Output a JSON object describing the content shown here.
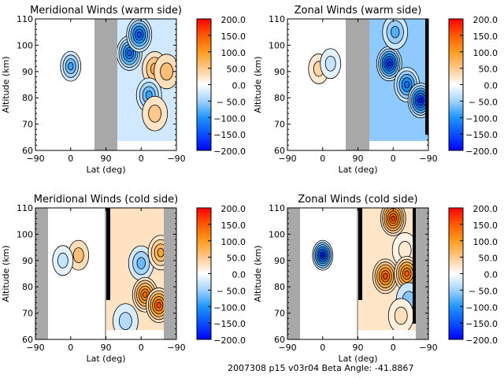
{
  "footer": "2007308 p15 v03r04 Beta Angle: -41.8867",
  "colorbar": {
    "ticks": [
      "200.0",
      "150.0",
      "100.0",
      "50.0",
      "0.0",
      "− 50.0",
      "−100.0",
      "−150.0",
      "−200.0"
    ],
    "range": [
      -200,
      200
    ],
    "stops": [
      {
        "value": 200,
        "color": "#ff0000"
      },
      {
        "value": 150,
        "color": "#ff5a00"
      },
      {
        "value": 100,
        "color": "#ff9c1e"
      },
      {
        "value": 50,
        "color": "#ffc88c"
      },
      {
        "value": 0,
        "color": "#ffffff"
      },
      {
        "value": -50,
        "color": "#a0d2ff"
      },
      {
        "value": -100,
        "color": "#1e96ff"
      },
      {
        "value": -150,
        "color": "#0a50ff"
      },
      {
        "value": -200,
        "color": "#0000ff"
      }
    ]
  },
  "chart_data": [
    {
      "type": "heatmap",
      "title": "Meridional Winds (warm side)",
      "xlabel": "Lat (deg)",
      "ylabel": "Altitude (km)",
      "xticks": [
        "−90",
        "0",
        "90",
        "0",
        "−90"
      ],
      "yticks": [
        "60",
        "70",
        "80",
        "90",
        "100",
        "110"
      ],
      "ylim": [
        60,
        110
      ],
      "clim": [
        -200,
        200
      ],
      "panel": "warm-meridional",
      "masked_lon_segment": "gray band between 90 and start of second half",
      "features": [
        {
          "x": 0,
          "y": 92,
          "value": -90
        },
        {
          "x": 150,
          "y": 97,
          "value": -140
        },
        {
          "x": 175,
          "y": 104,
          "value": -150
        },
        {
          "x": 215,
          "y": 91,
          "value": 80
        },
        {
          "x": 245,
          "y": 90,
          "value": 60
        },
        {
          "x": 200,
          "y": 81,
          "value": -90
        },
        {
          "x": 215,
          "y": 74,
          "value": 50
        }
      ]
    },
    {
      "type": "heatmap",
      "title": "Zonal Winds (warm side)",
      "xlabel": "Lat (deg)",
      "ylabel": "Altitude (km)",
      "xticks": [
        "−90",
        "0",
        "90",
        "0",
        "−90"
      ],
      "yticks": [
        "60",
        "70",
        "80",
        "90",
        "100",
        "110"
      ],
      "ylim": [
        60,
        110
      ],
      "clim": [
        -200,
        200
      ],
      "panel": "warm-zonal",
      "features": [
        {
          "x": -10,
          "y": 91,
          "value": 40
        },
        {
          "x": 20,
          "y": 93,
          "value": -30
        },
        {
          "x": 170,
          "y": 93,
          "value": -180
        },
        {
          "x": 215,
          "y": 85,
          "value": -130
        },
        {
          "x": 250,
          "y": 79,
          "value": -190
        },
        {
          "x": 185,
          "y": 105,
          "value": -80
        }
      ]
    },
    {
      "type": "heatmap",
      "title": "Meridional Winds (cold side)",
      "xlabel": "Lat (deg)",
      "ylabel": "Altitude (km)",
      "xticks": [
        "−90",
        "0",
        "90",
        "0",
        "−90"
      ],
      "yticks": [
        "60",
        "70",
        "80",
        "90",
        "100",
        "110"
      ],
      "ylim": [
        60,
        110
      ],
      "clim": [
        -200,
        200
      ],
      "panel": "cold-meridional",
      "features": [
        {
          "x": 20,
          "y": 92,
          "value": 60
        },
        {
          "x": -20,
          "y": 90,
          "value": -30
        },
        {
          "x": 180,
          "y": 89,
          "value": -70
        },
        {
          "x": 190,
          "y": 77,
          "value": 140
        },
        {
          "x": 225,
          "y": 73,
          "value": 160
        },
        {
          "x": 140,
          "y": 67,
          "value": -40
        },
        {
          "x": 230,
          "y": 93,
          "value": 90
        }
      ]
    },
    {
      "type": "heatmap",
      "title": "Zonal Winds (cold side)",
      "xlabel": "Lat (deg)",
      "ylabel": "Altitude (km)",
      "xticks": [
        "−90",
        "0",
        "90",
        "0",
        "−90"
      ],
      "yticks": [
        "60",
        "70",
        "80",
        "90",
        "100",
        "110"
      ],
      "ylim": [
        60,
        110
      ],
      "clim": [
        -200,
        200
      ],
      "panel": "cold-zonal",
      "features": [
        {
          "x": 0,
          "y": 92,
          "value": -190
        },
        {
          "x": 180,
          "y": 106,
          "value": 170
        },
        {
          "x": 210,
          "y": 94,
          "value": 20
        },
        {
          "x": 160,
          "y": 84,
          "value": 160
        },
        {
          "x": 215,
          "y": 85,
          "value": 150
        },
        {
          "x": 220,
          "y": 75,
          "value": -60
        },
        {
          "x": 200,
          "y": 69,
          "value": 30
        }
      ]
    }
  ]
}
